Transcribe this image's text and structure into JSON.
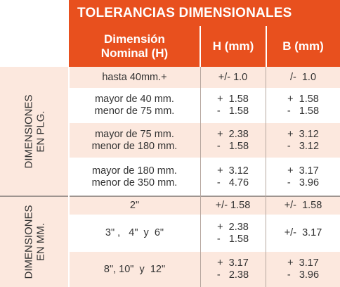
{
  "title": "TOLERANCIAS DIMENSIONALES",
  "headers": {
    "col1_line1": "Dimensión",
    "col1_line2": "Nominal (H)",
    "col2": "H (mm)",
    "col3": "B (mm)"
  },
  "groups": {
    "plg_line1": "DIMENSIONES",
    "plg_line2": "EN PLG.",
    "mm_line1": "DIMENSIONES",
    "mm_line2": "EN MM."
  },
  "rows": [
    {
      "nominal": [
        "hasta 40mm.+"
      ],
      "h": [
        "+/- 1.0"
      ],
      "b": [
        "/-  1.0"
      ]
    },
    {
      "nominal": [
        "mayor de 40 mm.",
        "menor de 75 mm."
      ],
      "h": [
        "+  1.58",
        "-   1.58"
      ],
      "b": [
        "+  1.58",
        "-   1.58"
      ]
    },
    {
      "nominal": [
        "mayor de 75 mm.",
        "menor de 180 mm."
      ],
      "h": [
        "+  2.38",
        "-   1.58"
      ],
      "b": [
        "+  3.12",
        "-   3.12"
      ]
    },
    {
      "nominal": [
        "mayor de 180 mm.",
        "menor de 350 mm."
      ],
      "h": [
        "+  3.12",
        "-   4.76"
      ],
      "b": [
        "+  3.17",
        "-   3.96"
      ]
    },
    {
      "nominal": [
        "2\""
      ],
      "h": [
        "+/- 1.58"
      ],
      "b": [
        "+/-  1.58"
      ]
    },
    {
      "nominal": [
        "3\" ,   4\"  y  6\""
      ],
      "h": [
        "+  2.38",
        "-   1.58"
      ],
      "b": [
        "+/-  3.17"
      ]
    },
    {
      "nominal": [
        "8\", 10\"  y  12\""
      ],
      "h": [
        "+  3.17",
        "-   2.38"
      ],
      "b": [
        "+  3.17",
        "-   3.96"
      ]
    }
  ]
}
